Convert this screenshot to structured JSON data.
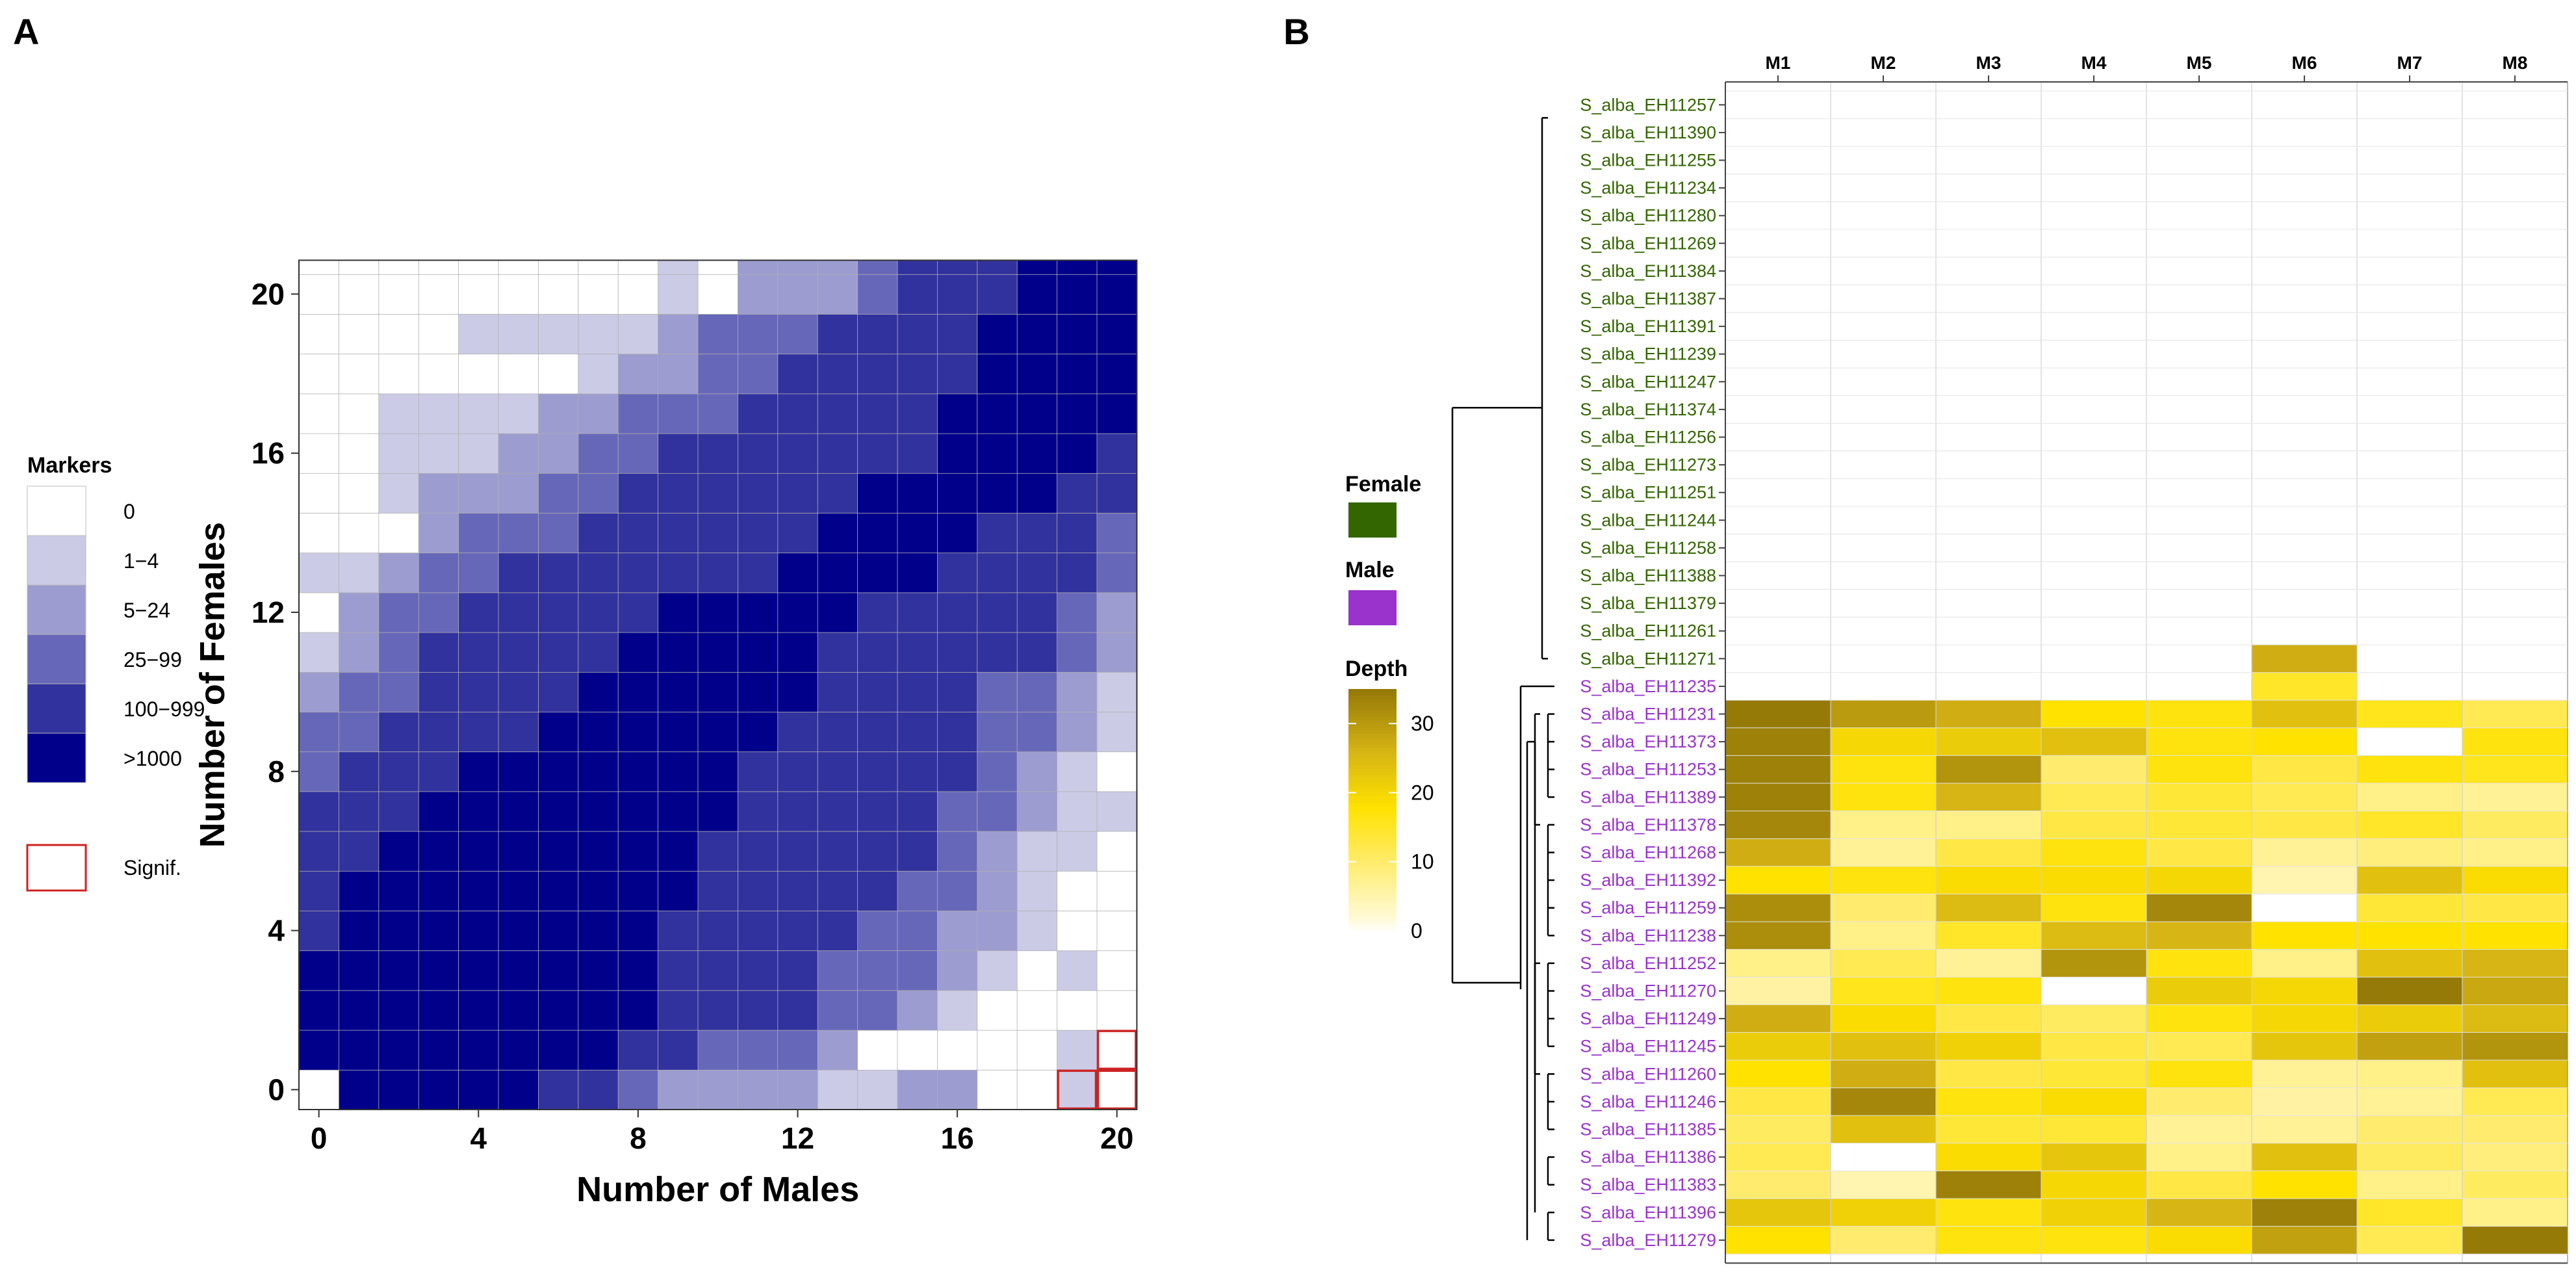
{
  "chart_data": [
    {
      "panel": "A",
      "type": "heatmap",
      "xlabel": "Number of Males",
      "ylabel": "Number of Females",
      "x_range": [
        0,
        20
      ],
      "y_range": [
        0,
        21
      ],
      "x_ticks": [
        "0",
        "4",
        "8",
        "12",
        "16",
        "20"
      ],
      "y_ticks": [
        "0",
        "4",
        "8",
        "12",
        "16",
        "20"
      ],
      "legend": {
        "title": "Markers",
        "categories": [
          "0",
          "1−4",
          "5−24",
          "25−99",
          "100−999",
          ">1000"
        ],
        "colors": [
          "#ffffff",
          "#cbcbe6",
          "#9c9cd0",
          "#6767ba",
          "#32329e",
          "#00008b"
        ],
        "signif_label": "Signif.",
        "signif_color": "#cc2222"
      },
      "levels": [
        [
          0,
          5,
          5,
          5,
          5,
          5,
          4,
          4,
          3,
          2,
          2,
          2,
          2,
          1,
          1,
          2,
          2,
          0,
          0,
          1,
          0
        ],
        [
          5,
          5,
          5,
          5,
          5,
          5,
          5,
          5,
          4,
          4,
          3,
          3,
          3,
          2,
          0,
          0,
          0,
          0,
          0,
          1,
          0
        ],
        [
          5,
          5,
          5,
          5,
          5,
          5,
          5,
          5,
          5,
          4,
          4,
          4,
          4,
          3,
          3,
          2,
          1,
          0,
          0,
          0,
          0
        ],
        [
          5,
          5,
          5,
          5,
          5,
          5,
          5,
          5,
          5,
          4,
          4,
          4,
          4,
          3,
          3,
          3,
          2,
          1,
          0,
          1,
          0
        ],
        [
          4,
          5,
          5,
          5,
          5,
          5,
          5,
          5,
          5,
          4,
          4,
          4,
          4,
          4,
          3,
          3,
          2,
          2,
          1,
          0,
          0
        ],
        [
          4,
          5,
          5,
          5,
          5,
          5,
          5,
          5,
          5,
          5,
          4,
          4,
          4,
          4,
          4,
          3,
          3,
          2,
          1,
          0,
          0
        ],
        [
          4,
          4,
          5,
          5,
          5,
          5,
          5,
          5,
          5,
          5,
          4,
          4,
          4,
          4,
          4,
          4,
          3,
          2,
          1,
          1,
          0
        ],
        [
          4,
          4,
          4,
          5,
          5,
          5,
          5,
          5,
          5,
          5,
          5,
          4,
          4,
          4,
          4,
          4,
          3,
          3,
          2,
          1,
          1
        ],
        [
          3,
          4,
          4,
          4,
          5,
          5,
          5,
          5,
          5,
          5,
          5,
          4,
          4,
          4,
          4,
          4,
          4,
          3,
          2,
          1,
          0
        ],
        [
          3,
          3,
          4,
          4,
          4,
          4,
          5,
          5,
          5,
          5,
          5,
          5,
          4,
          4,
          4,
          4,
          4,
          3,
          3,
          2,
          1
        ],
        [
          2,
          3,
          3,
          4,
          4,
          4,
          4,
          5,
          5,
          5,
          5,
          5,
          5,
          4,
          4,
          4,
          4,
          3,
          3,
          2,
          1
        ],
        [
          1,
          2,
          3,
          4,
          4,
          4,
          4,
          4,
          5,
          5,
          5,
          5,
          5,
          4,
          4,
          4,
          4,
          4,
          4,
          3,
          2
        ],
        [
          0,
          2,
          3,
          3,
          4,
          4,
          4,
          4,
          4,
          5,
          5,
          5,
          5,
          5,
          4,
          4,
          4,
          4,
          4,
          3,
          2
        ],
        [
          1,
          1,
          2,
          3,
          3,
          4,
          4,
          4,
          4,
          4,
          4,
          4,
          5,
          5,
          5,
          5,
          4,
          4,
          4,
          4,
          3
        ],
        [
          0,
          0,
          0,
          2,
          3,
          3,
          3,
          4,
          4,
          4,
          4,
          4,
          4,
          5,
          5,
          5,
          5,
          4,
          4,
          4,
          3
        ],
        [
          0,
          0,
          1,
          2,
          2,
          2,
          3,
          3,
          4,
          4,
          4,
          4,
          4,
          4,
          5,
          5,
          5,
          5,
          5,
          4,
          4
        ],
        [
          0,
          0,
          1,
          1,
          1,
          2,
          2,
          3,
          3,
          4,
          4,
          4,
          4,
          4,
          4,
          4,
          5,
          5,
          5,
          5,
          4
        ],
        [
          0,
          0,
          1,
          1,
          1,
          1,
          2,
          2,
          3,
          3,
          3,
          4,
          4,
          4,
          4,
          4,
          5,
          5,
          5,
          5,
          5
        ],
        [
          0,
          0,
          0,
          0,
          0,
          0,
          0,
          1,
          2,
          2,
          3,
          3,
          4,
          4,
          4,
          4,
          4,
          5,
          5,
          5,
          5
        ],
        [
          0,
          0,
          0,
          0,
          1,
          1,
          1,
          1,
          1,
          2,
          3,
          3,
          3,
          4,
          4,
          4,
          4,
          5,
          5,
          5,
          5
        ],
        [
          0,
          0,
          0,
          0,
          0,
          0,
          0,
          0,
          0,
          1,
          0,
          2,
          2,
          2,
          3,
          4,
          4,
          4,
          5,
          5,
          5
        ]
      ],
      "significant_cells": [
        [
          19,
          0
        ],
        [
          20,
          0
        ],
        [
          20,
          1
        ]
      ]
    },
    {
      "panel": "B",
      "type": "heatmap",
      "columns": [
        "M1",
        "M2",
        "M3",
        "M4",
        "M5",
        "M6",
        "M7",
        "M8"
      ],
      "legend": {
        "female_label": "Female",
        "male_label": "Male",
        "female_color": "#336600",
        "male_color": "#9933cc",
        "depth_title": "Depth",
        "depth_ticks": [
          "30",
          "20",
          "10",
          "0"
        ],
        "depth_max": 35
      },
      "rows": [
        {
          "name": "S_alba_EH11257",
          "sex": "female",
          "depth": [
            0,
            0,
            0,
            0,
            0,
            0,
            0,
            0
          ]
        },
        {
          "name": "S_alba_EH11390",
          "sex": "female",
          "depth": [
            0,
            0,
            0,
            0,
            0,
            0,
            0,
            0
          ]
        },
        {
          "name": "S_alba_EH11255",
          "sex": "female",
          "depth": [
            0,
            0,
            0,
            0,
            0,
            0,
            0,
            0
          ]
        },
        {
          "name": "S_alba_EH11234",
          "sex": "female",
          "depth": [
            0,
            0,
            0,
            0,
            0,
            0,
            0,
            0
          ]
        },
        {
          "name": "S_alba_EH11280",
          "sex": "female",
          "depth": [
            0,
            0,
            0,
            0,
            0,
            0,
            0,
            0
          ]
        },
        {
          "name": "S_alba_EH11269",
          "sex": "female",
          "depth": [
            0,
            0,
            0,
            0,
            0,
            0,
            0,
            0
          ]
        },
        {
          "name": "S_alba_EH11384",
          "sex": "female",
          "depth": [
            0,
            0,
            0,
            0,
            0,
            0,
            0,
            0
          ]
        },
        {
          "name": "S_alba_EH11387",
          "sex": "female",
          "depth": [
            0,
            0,
            0,
            0,
            0,
            0,
            0,
            0
          ]
        },
        {
          "name": "S_alba_EH11391",
          "sex": "female",
          "depth": [
            0,
            0,
            0,
            0,
            0,
            0,
            0,
            0
          ]
        },
        {
          "name": "S_alba_EH11239",
          "sex": "female",
          "depth": [
            0,
            0,
            0,
            0,
            0,
            0,
            0,
            0
          ]
        },
        {
          "name": "S_alba_EH11247",
          "sex": "female",
          "depth": [
            0,
            0,
            0,
            0,
            0,
            0,
            0,
            0
          ]
        },
        {
          "name": "S_alba_EH11374",
          "sex": "female",
          "depth": [
            0,
            0,
            0,
            0,
            0,
            0,
            0,
            0
          ]
        },
        {
          "name": "S_alba_EH11256",
          "sex": "female",
          "depth": [
            0,
            0,
            0,
            0,
            0,
            0,
            0,
            0
          ]
        },
        {
          "name": "S_alba_EH11273",
          "sex": "female",
          "depth": [
            0,
            0,
            0,
            0,
            0,
            0,
            0,
            0
          ]
        },
        {
          "name": "S_alba_EH11251",
          "sex": "female",
          "depth": [
            0,
            0,
            0,
            0,
            0,
            0,
            0,
            0
          ]
        },
        {
          "name": "S_alba_EH11244",
          "sex": "female",
          "depth": [
            0,
            0,
            0,
            0,
            0,
            0,
            0,
            0
          ]
        },
        {
          "name": "S_alba_EH11258",
          "sex": "female",
          "depth": [
            0,
            0,
            0,
            0,
            0,
            0,
            0,
            0
          ]
        },
        {
          "name": "S_alba_EH11388",
          "sex": "female",
          "depth": [
            0,
            0,
            0,
            0,
            0,
            0,
            0,
            0
          ]
        },
        {
          "name": "S_alba_EH11379",
          "sex": "female",
          "depth": [
            0,
            0,
            0,
            0,
            0,
            0,
            0,
            0
          ]
        },
        {
          "name": "S_alba_EH11261",
          "sex": "female",
          "depth": [
            0,
            0,
            0,
            0,
            0,
            0,
            0,
            0
          ]
        },
        {
          "name": "S_alba_EH11271",
          "sex": "female",
          "depth": [
            0,
            0,
            0,
            0,
            0,
            27,
            0,
            0
          ]
        },
        {
          "name": "S_alba_EH11235",
          "sex": "male",
          "depth": [
            0,
            0,
            0,
            0,
            0,
            15,
            0,
            0
          ]
        },
        {
          "name": "S_alba_EH11231",
          "sex": "male",
          "depth": [
            35,
            30,
            27,
            18,
            17,
            24,
            16,
            12
          ]
        },
        {
          "name": "S_alba_EH11373",
          "sex": "male",
          "depth": [
            34,
            20,
            22,
            24,
            17,
            18,
            0,
            17
          ]
        },
        {
          "name": "S_alba_EH11253",
          "sex": "male",
          "depth": [
            34,
            17,
            31,
            10,
            17,
            13,
            17,
            16
          ]
        },
        {
          "name": "S_alba_EH11389",
          "sex": "male",
          "depth": [
            34,
            17,
            26,
            12,
            14,
            12,
            8,
            7
          ]
        },
        {
          "name": "S_alba_EH11378",
          "sex": "male",
          "depth": [
            33,
            8,
            8,
            13,
            14,
            13,
            15,
            11
          ]
        },
        {
          "name": "S_alba_EH11268",
          "sex": "male",
          "depth": [
            27,
            7,
            13,
            17,
            13,
            7,
            9,
            8
          ]
        },
        {
          "name": "S_alba_EH11392",
          "sex": "male",
          "depth": [
            18,
            17,
            19,
            19,
            20,
            5,
            24,
            19
          ]
        },
        {
          "name": "S_alba_EH11259",
          "sex": "male",
          "depth": [
            32,
            10,
            25,
            17,
            33,
            0,
            14,
            13
          ]
        },
        {
          "name": "S_alba_EH11238",
          "sex": "male",
          "depth": [
            32,
            8,
            15,
            25,
            26,
            18,
            18,
            18
          ]
        },
        {
          "name": "S_alba_EH11252",
          "sex": "male",
          "depth": [
            8,
            12,
            7,
            31,
            17,
            8,
            24,
            26
          ]
        },
        {
          "name": "S_alba_EH11270",
          "sex": "male",
          "depth": [
            6,
            16,
            17,
            0,
            22,
            20,
            35,
            28
          ]
        },
        {
          "name": "S_alba_EH11249",
          "sex": "male",
          "depth": [
            27,
            19,
            13,
            11,
            17,
            20,
            22,
            25
          ]
        },
        {
          "name": "S_alba_EH11245",
          "sex": "male",
          "depth": [
            22,
            24,
            21,
            13,
            12,
            23,
            29,
            31
          ]
        },
        {
          "name": "S_alba_EH11260",
          "sex": "male",
          "depth": [
            18,
            27,
            13,
            14,
            17,
            7,
            8,
            24
          ]
        },
        {
          "name": "S_alba_EH11246",
          "sex": "male",
          "depth": [
            13,
            33,
            17,
            19,
            10,
            6,
            7,
            12
          ]
        },
        {
          "name": "S_alba_EH11385",
          "sex": "male",
          "depth": [
            11,
            24,
            14,
            14,
            7,
            7,
            10,
            10
          ]
        },
        {
          "name": "S_alba_EH11386",
          "sex": "male",
          "depth": [
            12,
            0,
            19,
            23,
            8,
            24,
            11,
            9
          ]
        },
        {
          "name": "S_alba_EH11383",
          "sex": "male",
          "depth": [
            10,
            5,
            34,
            20,
            13,
            18,
            8,
            11
          ]
        },
        {
          "name": "S_alba_EH11396",
          "sex": "male",
          "depth": [
            23,
            21,
            17,
            21,
            26,
            34,
            15,
            8
          ]
        },
        {
          "name": "S_alba_EH11279",
          "sex": "male",
          "depth": [
            18,
            10,
            17,
            17,
            19,
            29,
            12,
            35
          ]
        }
      ]
    }
  ],
  "panels": {
    "a_letter": "A",
    "b_letter": "B"
  }
}
